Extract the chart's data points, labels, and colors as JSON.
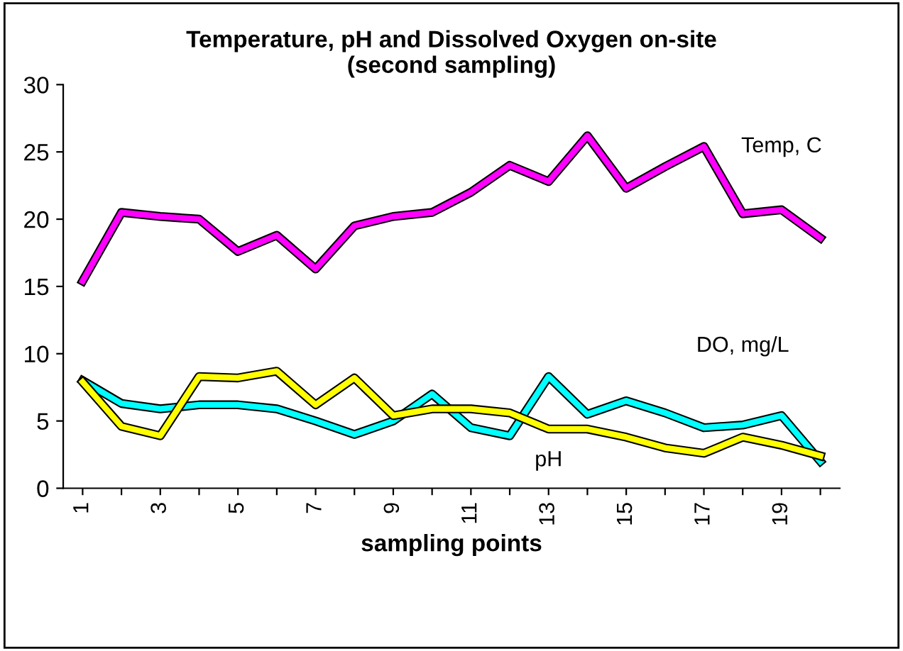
{
  "chart_data": {
    "type": "line",
    "title": "Temperature, pH and Dissolved Oxygen on-site\n(second sampling)",
    "xlabel": "sampling points",
    "categories": [
      "1",
      null,
      "3",
      null,
      "5",
      null,
      "7",
      null,
      "9",
      null,
      "11",
      null,
      "13",
      null,
      "15",
      null,
      "17",
      null,
      "19",
      null
    ],
    "series": [
      {
        "name": "Temp, C",
        "color": "#ff00ff",
        "values": [
          15.4,
          20.5,
          20.2,
          20.0,
          17.6,
          18.8,
          16.3,
          19.5,
          20.2,
          20.5,
          22.0,
          24.0,
          22.8,
          26.2,
          22.3,
          23.9,
          25.4,
          20.4,
          20.7,
          18.6
        ]
      },
      {
        "name": "DO, mg/L",
        "color": "#00ffff",
        "values": [
          8.0,
          6.3,
          5.9,
          6.2,
          6.2,
          5.9,
          5.0,
          4.0,
          5.0,
          7.0,
          4.5,
          3.9,
          8.3,
          5.5,
          6.5,
          5.6,
          4.5,
          4.7,
          5.4,
          2.0
        ]
      },
      {
        "name": "pH",
        "color": "#ffff00",
        "values": [
          7.9,
          4.6,
          3.9,
          8.3,
          8.2,
          8.7,
          6.2,
          8.2,
          5.4,
          5.9,
          5.9,
          5.6,
          4.4,
          4.4,
          3.8,
          3.0,
          2.6,
          3.8,
          3.2,
          2.4
        ]
      }
    ],
    "ylim": [
      0,
      30
    ],
    "yticks": [
      0,
      5,
      10,
      15,
      20,
      25,
      30
    ],
    "grid": false,
    "legend": false,
    "marker": "none",
    "line_style": "solid"
  }
}
